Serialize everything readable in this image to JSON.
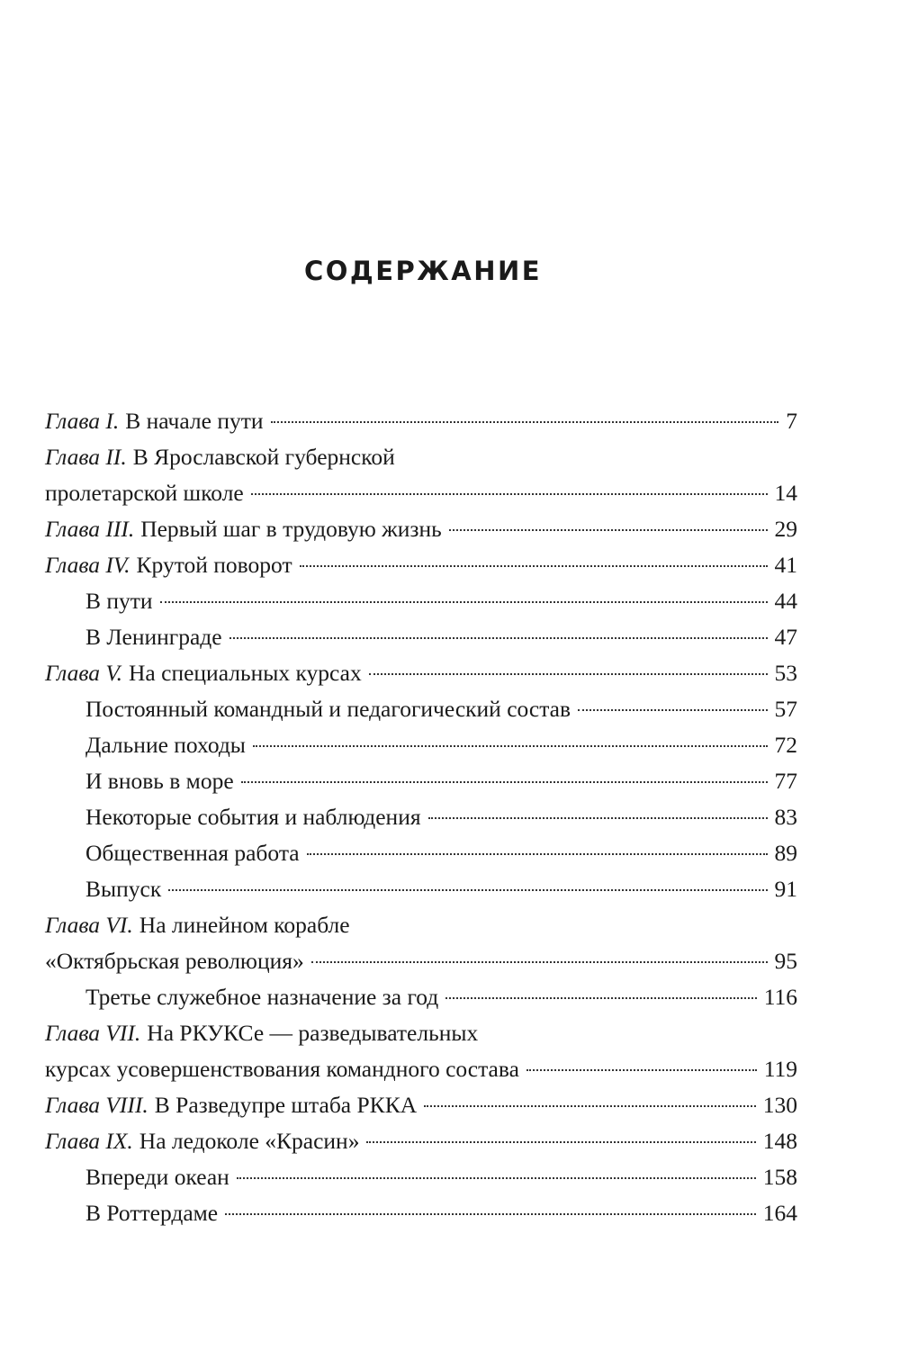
{
  "title": "СОДЕРЖАНИЕ",
  "entries": [
    {
      "label": "Глава I.",
      "text": "В начале пути",
      "page": "7",
      "indent": false
    },
    {
      "label": "Глава II.",
      "text": "В Ярославской губернской",
      "page": null,
      "indent": false
    },
    {
      "label": "",
      "text": "пролетарской школе",
      "page": "14",
      "indent": false
    },
    {
      "label": "Глава III.",
      "text": "Первый шаг в трудовую жизнь",
      "page": "29",
      "indent": false
    },
    {
      "label": "Глава IV.",
      "text": "Крутой поворот",
      "page": "41",
      "indent": false
    },
    {
      "label": "",
      "text": "В пути",
      "page": "44",
      "indent": true
    },
    {
      "label": "",
      "text": "В Ленинграде",
      "page": "47",
      "indent": true
    },
    {
      "label": "Глава V.",
      "text": "На специальных курсах",
      "page": "53",
      "indent": false
    },
    {
      "label": "",
      "text": "Постоянный командный и педагогический состав",
      "page": "57",
      "indent": true
    },
    {
      "label": "",
      "text": "Дальние походы",
      "page": "72",
      "indent": true
    },
    {
      "label": "",
      "text": "И вновь в море",
      "page": "77",
      "indent": true
    },
    {
      "label": "",
      "text": "Некоторые события и наблюдения",
      "page": "83",
      "indent": true
    },
    {
      "label": "",
      "text": "Общественная работа",
      "page": "89",
      "indent": true
    },
    {
      "label": "",
      "text": "Выпуск",
      "page": "91",
      "indent": true
    },
    {
      "label": "Глава VI.",
      "text": "На линейном корабле",
      "page": null,
      "indent": false
    },
    {
      "label": "",
      "text": "«Октябрьская революция»",
      "page": "95",
      "indent": false
    },
    {
      "label": "",
      "text": "Третье служебное назначение за год",
      "page": "116",
      "indent": true
    },
    {
      "label": "Глава VII.",
      "text": "На РКУКСе — разведывательных",
      "page": null,
      "indent": false
    },
    {
      "label": "",
      "text": "курсах усовершенствования командного состава",
      "page": "119",
      "indent": false
    },
    {
      "label": "Глава VIII.",
      "text": "В Разведупре штаба РККА",
      "page": "130",
      "indent": false
    },
    {
      "label": "Глава IX.",
      "text": "На ледоколе «Красин»",
      "page": "148",
      "indent": false
    },
    {
      "label": "",
      "text": "Впереди океан",
      "page": "158",
      "indent": true
    },
    {
      "label": "",
      "text": "В Роттердаме",
      "page": "164",
      "indent": true
    }
  ]
}
